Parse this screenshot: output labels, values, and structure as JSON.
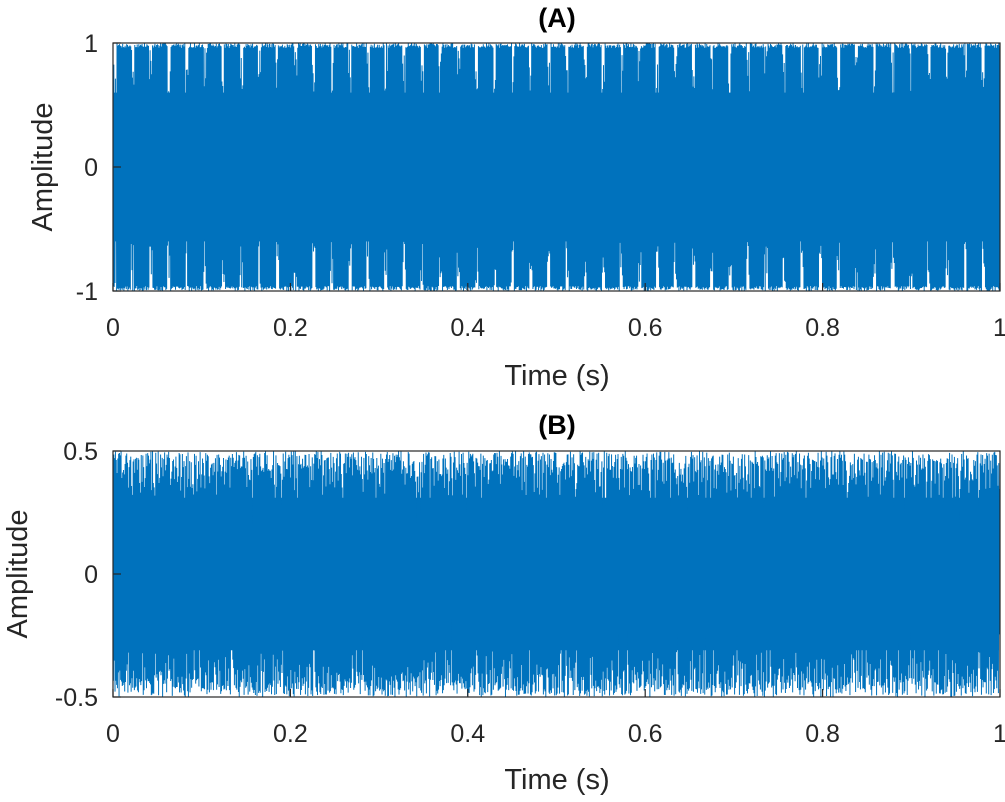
{
  "chart_data": [
    {
      "type": "line",
      "title": "(A)",
      "xlabel": "Time (s)",
      "ylabel": "Amplitude",
      "xlim": [
        0,
        1
      ],
      "ylim": [
        -1,
        1
      ],
      "xticks": [
        "0",
        "0.2",
        "0.4",
        "0.6",
        "0.8",
        "1"
      ],
      "yticks": [
        "-1",
        "0",
        "1"
      ],
      "line_color": "#0072BD",
      "grid": false,
      "signal": {
        "description": "dense oscillating signal filling nearly the whole range, with periodic dips",
        "envelope_max": 1,
        "envelope_min": -1,
        "inner_dip_level": 0.55,
        "dip_period_s": 0.0204,
        "samples": 2200,
        "seed": 7
      }
    },
    {
      "type": "line",
      "title": "(B)",
      "xlabel": "Time (s)",
      "ylabel": "Amplitude",
      "xlim": [
        0,
        1
      ],
      "ylim": [
        -0.5,
        0.5
      ],
      "xticks": [
        "0",
        "0.2",
        "0.4",
        "0.6",
        "0.8",
        "1"
      ],
      "yticks": [
        "-0.5",
        "0",
        "0.5"
      ],
      "line_color": "#0072BD",
      "grid": false,
      "signal": {
        "description": "dense noise-like signal filling the range between -0.5 and 0.5",
        "envelope_max": 0.5,
        "envelope_min": -0.5,
        "samples": 2200,
        "seed": 19
      }
    }
  ]
}
